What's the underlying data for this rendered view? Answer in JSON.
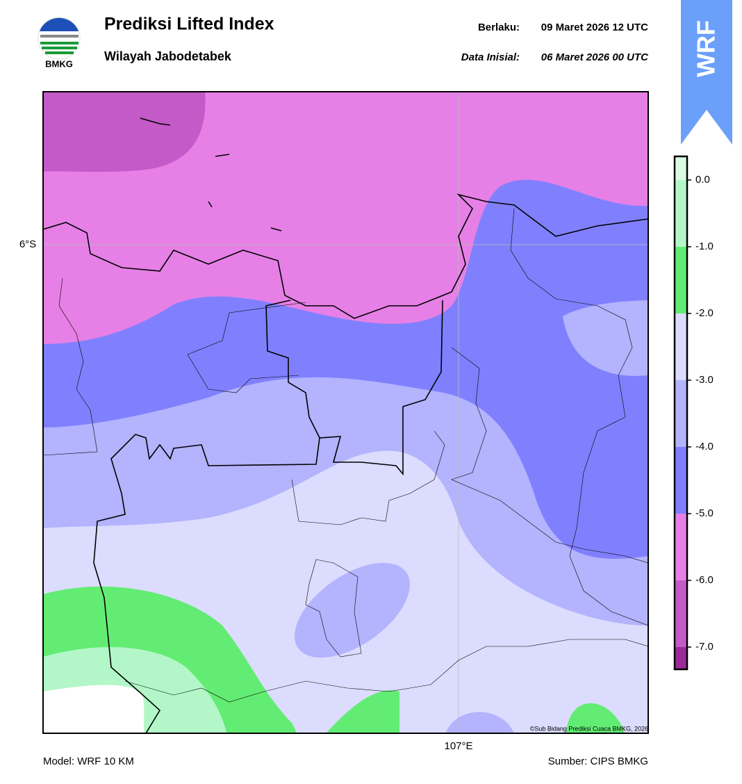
{
  "header": {
    "logo_text": "BMKG",
    "title": "Prediksi Lifted Index",
    "subtitle": "Wilayah Jabodetabek",
    "valid_label": "Berlaku:",
    "valid_time": "09 Maret 2026 12 UTC",
    "init_label": "Data Inisial:",
    "init_time": "06 Maret 2026 00 UTC"
  },
  "badge": "WRF",
  "map": {
    "lat_label": "6°S",
    "lon_label": "107°E",
    "credit": "©Sub Bidang Prediksi Cuaca BMKG, 2026"
  },
  "colorbar": {
    "ticks": [
      {
        "value": 0,
        "label": "0.0"
      },
      {
        "value": -1,
        "label": "-1.0"
      },
      {
        "value": -2,
        "label": "-2.0"
      },
      {
        "value": -3,
        "label": "-3.0"
      },
      {
        "value": -4,
        "label": "-4.0"
      },
      {
        "value": -5,
        "label": "-5.0"
      },
      {
        "value": -6,
        "label": "-6.0"
      },
      {
        "value": -7,
        "label": "-7.0"
      }
    ],
    "colors": [
      "#d9fbe2",
      "#b3f7c8",
      "#63ec73",
      "#dcdcfe",
      "#b3b3fe",
      "#8080fe",
      "#e680e6",
      "#c35ac8",
      "#9a2a9a"
    ]
  },
  "footer": {
    "model": "Model: WRF 10 KM",
    "source": "Sumber: CIPS BMKG"
  }
}
